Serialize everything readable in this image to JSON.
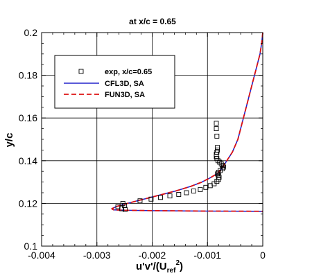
{
  "chart_data": {
    "type": "line",
    "title": "at x/c = 0.65",
    "xlabel": "u'v'/(U_ref^2)",
    "xlabel_parts": {
      "main": "u'v'/(U",
      "sub": "ref",
      "sup": "2",
      "close": ")"
    },
    "ylabel": "y/c",
    "xlim": [
      -0.004,
      0
    ],
    "ylim": [
      0.1,
      0.2
    ],
    "x_ticks": [
      -0.004,
      -0.003,
      -0.002,
      -0.001,
      0
    ],
    "x_tick_labels": [
      "-0.004",
      "-0.003",
      "-0.002",
      "-0.001",
      "0"
    ],
    "y_ticks": [
      0.1,
      0.12,
      0.14,
      0.16,
      0.18,
      0.2
    ],
    "y_tick_labels": [
      "0.1",
      "0.12",
      "0.14",
      "0.16",
      "0.18",
      "0.2"
    ],
    "grid": true,
    "legend_position": "top-left",
    "series": [
      {
        "name": "exp, x/c=0.65",
        "style": "square-marker",
        "color": "#000000",
        "x": [
          -0.00262,
          -0.00255,
          -0.0025,
          -0.00253,
          -0.00249,
          -0.00222,
          -0.00202,
          -0.00185,
          -0.00168,
          -0.00152,
          -0.00138,
          -0.00125,
          -0.00113,
          -0.00103,
          -0.00095,
          -0.00088,
          -0.00083,
          -0.0008,
          -0.00079,
          -0.0008,
          -0.00082,
          -0.0008,
          -0.00077,
          -0.00073,
          -0.00071,
          -0.00072,
          -0.00075,
          -0.00078,
          -0.00081,
          -0.00083,
          -0.00084,
          -0.00084,
          -0.00083,
          -0.00082,
          -0.00082,
          -0.00083,
          -0.00084,
          -0.00084
        ],
        "y": [
          0.1185,
          0.1175,
          0.119,
          0.12,
          0.1172,
          0.1212,
          0.122,
          0.1228,
          0.1235,
          0.1242,
          0.125,
          0.1258,
          0.1265,
          0.1275,
          0.1283,
          0.1292,
          0.1303,
          0.1312,
          0.1322,
          0.133,
          0.1338,
          0.1346,
          0.1354,
          0.1362,
          0.137,
          0.1378,
          0.1385,
          0.1393,
          0.14,
          0.141,
          0.142,
          0.143,
          0.144,
          0.145,
          0.1462,
          0.1515,
          0.155,
          0.1575
        ]
      },
      {
        "name": "CFL3D, SA",
        "style": "solid",
        "color": "#2222cc",
        "x": [
          0.0,
          -2e-05,
          -5e-05,
          -0.0001,
          -0.00015,
          -0.0002,
          -0.00025,
          -0.0003,
          -0.00035,
          -0.0004,
          -0.00045,
          -0.0005,
          -0.00055,
          -0.0006,
          -0.00065,
          -0.0007,
          -0.00075,
          -0.00082,
          -0.00095,
          -0.0011,
          -0.0013,
          -0.00155,
          -0.00185,
          -0.00215,
          -0.00245,
          -0.00265,
          -0.00273,
          -0.0027,
          -0.0025,
          -0.002,
          -0.001,
          0.0
        ],
        "y": [
          0.2,
          0.195,
          0.19,
          0.185,
          0.18,
          0.175,
          0.17,
          0.165,
          0.16,
          0.155,
          0.15,
          0.147,
          0.144,
          0.142,
          0.14,
          0.138,
          0.136,
          0.134,
          0.132,
          0.13,
          0.128,
          0.126,
          0.124,
          0.122,
          0.12,
          0.1185,
          0.1175,
          0.117,
          0.1168,
          0.1166,
          0.1164,
          0.1163
        ]
      },
      {
        "name": "FUN3D, SA",
        "style": "dashed",
        "color": "#dd1111",
        "x": [
          0.0,
          -2e-05,
          -5e-05,
          -0.0001,
          -0.00015,
          -0.0002,
          -0.00025,
          -0.0003,
          -0.00035,
          -0.0004,
          -0.00045,
          -0.0005,
          -0.00055,
          -0.0006,
          -0.00065,
          -0.0007,
          -0.00075,
          -0.00082,
          -0.00095,
          -0.0011,
          -0.0013,
          -0.00155,
          -0.00185,
          -0.00215,
          -0.00245,
          -0.00265,
          -0.00273,
          -0.0027,
          -0.0025,
          -0.002,
          -0.001,
          0.0
        ],
        "y": [
          0.2,
          0.195,
          0.19,
          0.185,
          0.18,
          0.175,
          0.17,
          0.165,
          0.16,
          0.155,
          0.15,
          0.147,
          0.144,
          0.142,
          0.14,
          0.138,
          0.136,
          0.134,
          0.132,
          0.13,
          0.128,
          0.126,
          0.124,
          0.122,
          0.12,
          0.1185,
          0.1175,
          0.117,
          0.1168,
          0.1166,
          0.1164,
          0.1163
        ]
      }
    ]
  }
}
